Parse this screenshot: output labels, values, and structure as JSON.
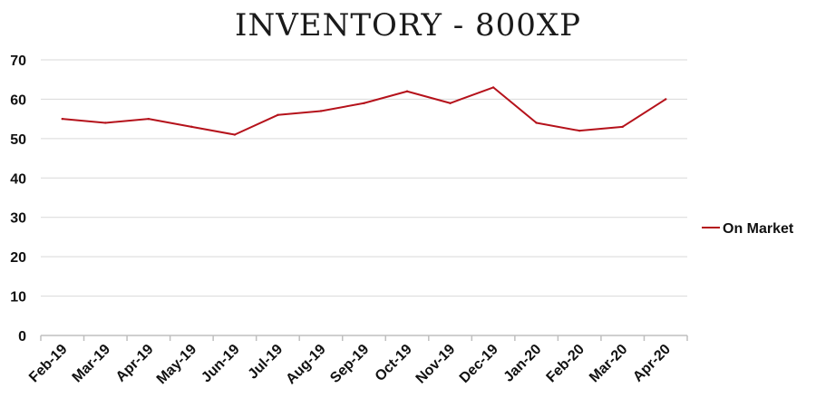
{
  "chart_data": {
    "type": "line",
    "title": "INVENTORY - 800XP",
    "xlabel": "",
    "ylabel": "",
    "categories": [
      "Feb-19",
      "Mar-19",
      "Apr-19",
      "May-19",
      "Jun-19",
      "Jul-19",
      "Aug-19",
      "Sep-19",
      "Oct-19",
      "Nov-19",
      "Dec-19",
      "Jan-20",
      "Feb-20",
      "Mar-20",
      "Apr-20"
    ],
    "series": [
      {
        "name": "On Market",
        "color": "#b5121b",
        "values": [
          55,
          54,
          55,
          53,
          51,
          56,
          57,
          59,
          62,
          59,
          63,
          54,
          52,
          53,
          60
        ]
      }
    ],
    "ylim": [
      0,
      70
    ],
    "yticks": [
      0,
      10,
      20,
      30,
      40,
      50,
      60,
      70
    ],
    "grid": true,
    "legend_position": "right"
  }
}
